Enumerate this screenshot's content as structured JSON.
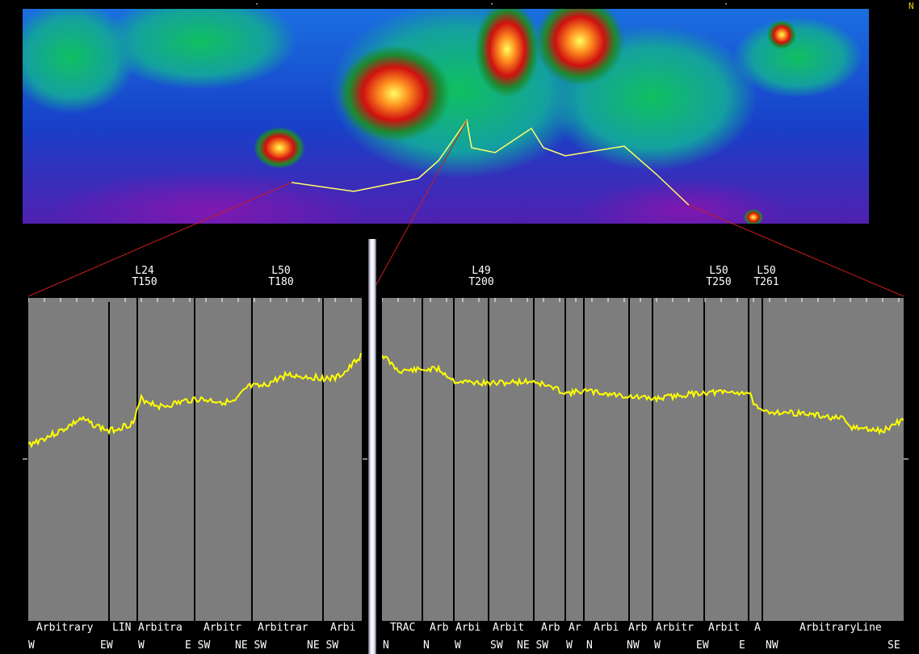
{
  "compass": {
    "letter": "N"
  },
  "map": {
    "colors": {
      "low": "#7a1aa8",
      "mid": "#1e4fd8",
      "green": "#00b04a",
      "red": "#d01818",
      "peak": "#ffff40",
      "profile": "#ffff66",
      "leader": "#c81e1e"
    }
  },
  "left_panel": {
    "headers": [
      {
        "line": "L24",
        "trace": "T150"
      },
      {
        "line": "L50",
        "trace": "T180"
      }
    ],
    "segment_names": [
      "Arbitrary",
      "LIN",
      "Arbitra",
      "Arbitr",
      "Arbitrar",
      "Arbi"
    ],
    "directions": [
      "W",
      "EW",
      "W",
      "E SW",
      "NE SW",
      "NE SW"
    ],
    "colors": {
      "panel": "#7d7d7d",
      "trace": "#ffff00",
      "separator": "#000000"
    }
  },
  "right_panel": {
    "headers": [
      {
        "line": "L49",
        "trace": "T200"
      },
      {
        "line": "L50",
        "trace": "T250"
      },
      {
        "line": "L50",
        "trace": "T261"
      }
    ],
    "segment_names": [
      "TRAC",
      "Arb",
      "Arbi",
      "Arbit",
      "Arb",
      "Ar",
      "Arbi",
      "Arb",
      "Arbitr",
      "Arbit",
      "A",
      "ArbitraryLine"
    ],
    "directions": [
      "N",
      "N",
      "W",
      "SW",
      "NE SW",
      "W",
      "N",
      "NW",
      "W",
      "EW",
      "E",
      "NW",
      "SE"
    ],
    "colors": {
      "panel": "#7d7d7d",
      "trace": "#ffff00",
      "separator": "#000000"
    }
  }
}
